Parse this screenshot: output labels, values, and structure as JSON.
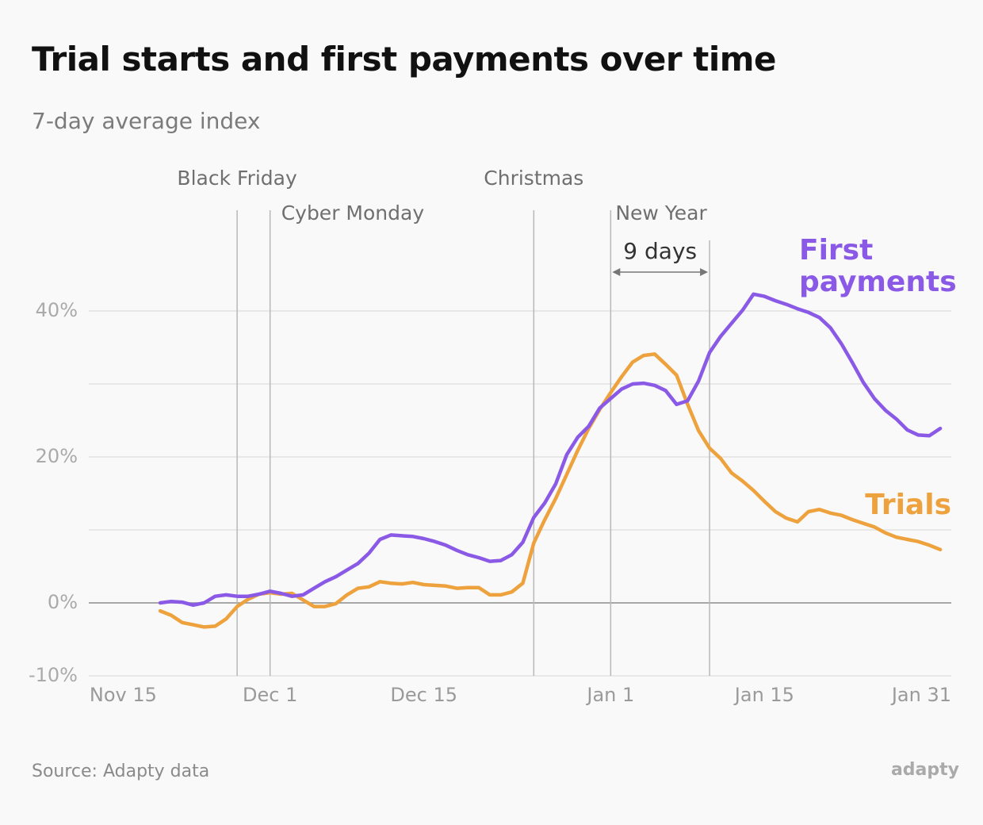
{
  "chart_data": {
    "type": "line",
    "title": "Trial starts and first payments over time",
    "subtitle": "7-day average index",
    "source": "Source: Adapty data",
    "logo": "adapty",
    "xlim": [
      -0.5,
      78
    ],
    "xticks": [
      {
        "value": 0,
        "label": "Nov 15"
      },
      {
        "value": 16,
        "label": "Dec 1"
      },
      {
        "value": 30,
        "label": "Dec 15"
      },
      {
        "value": 47,
        "label": "Jan 1"
      },
      {
        "value": 61,
        "label": "Jan 15"
      },
      {
        "value": 77,
        "label": "Jan 31"
      }
    ],
    "ylim": [
      -10,
      54
    ],
    "yticks": [
      {
        "value": -10,
        "label": "-10%"
      },
      {
        "value": 0,
        "label": "0%"
      },
      {
        "value": 20,
        "label": "20%"
      },
      {
        "value": 40,
        "label": "40%"
      }
    ],
    "grid_minor": [
      10,
      30
    ],
    "grid": true,
    "annotations": [
      {
        "label": "Black Friday",
        "x": 13
      },
      {
        "label": "Cyber Monday",
        "x": 16
      },
      {
        "label": "Christmas",
        "x": 40
      },
      {
        "label": "New Year",
        "x": 47
      }
    ],
    "span": {
      "label": "9 days",
      "x": 47,
      "x2": 56
    },
    "x": [
      6,
      7,
      8,
      9,
      10,
      11,
      12,
      13,
      14,
      15,
      16,
      17,
      18,
      19,
      20,
      21,
      22,
      23,
      24,
      25,
      26,
      27,
      28,
      29,
      30,
      31,
      32,
      33,
      34,
      35,
      36,
      37,
      38,
      39,
      40,
      41,
      42,
      43,
      44,
      45,
      46,
      47,
      48,
      49,
      50,
      51,
      52,
      53,
      54,
      55,
      56,
      57,
      58,
      59,
      60,
      61,
      62,
      63,
      64,
      65,
      66,
      67,
      68,
      69,
      70,
      71,
      72,
      73,
      74,
      75,
      76,
      77
    ],
    "series": [
      {
        "name": "First payments",
        "color": "#8a5ae6",
        "values": [
          0.0,
          0.2,
          0.1,
          -0.3,
          0.0,
          0.9,
          1.1,
          0.9,
          0.9,
          1.2,
          1.6,
          1.3,
          0.9,
          1.1,
          2.0,
          2.9,
          3.6,
          4.5,
          5.4,
          6.8,
          8.7,
          9.3,
          9.2,
          9.1,
          8.8,
          8.4,
          7.9,
          7.2,
          6.6,
          6.2,
          5.7,
          5.8,
          6.6,
          8.3,
          11.7,
          13.7,
          16.3,
          20.3,
          22.7,
          24.2,
          26.7,
          28.0,
          29.3,
          30.0,
          30.1,
          29.8,
          29.1,
          27.2,
          27.7,
          30.4,
          34.3,
          36.5,
          38.3,
          40.1,
          42.3,
          42.0,
          41.4,
          40.9,
          40.3,
          39.8,
          39.1,
          37.7,
          35.5,
          32.9,
          30.2,
          28.0,
          26.4,
          25.2,
          23.7,
          23.0,
          22.9,
          23.9
        ]
      },
      {
        "name": "Trials",
        "color": "#eda23e",
        "values": [
          -1.1,
          -1.7,
          -2.7,
          -3.0,
          -3.3,
          -3.2,
          -2.2,
          -0.5,
          0.5,
          1.2,
          1.4,
          1.2,
          1.3,
          0.4,
          -0.5,
          -0.5,
          -0.1,
          1.1,
          2.0,
          2.2,
          2.9,
          2.7,
          2.6,
          2.8,
          2.5,
          2.4,
          2.3,
          2.0,
          2.1,
          2.1,
          1.1,
          1.1,
          1.5,
          2.7,
          8.2,
          11.4,
          14.3,
          17.6,
          20.9,
          23.9,
          26.5,
          28.8,
          31.0,
          33.0,
          33.9,
          34.1,
          32.7,
          31.2,
          27.2,
          23.6,
          21.2,
          19.8,
          17.8,
          16.7,
          15.4,
          13.9,
          12.5,
          11.6,
          11.1,
          12.5,
          12.8,
          12.3,
          12.0,
          11.4,
          10.9,
          10.4,
          9.6,
          9.0,
          8.7,
          8.4,
          7.9,
          7.3
        ]
      }
    ]
  }
}
